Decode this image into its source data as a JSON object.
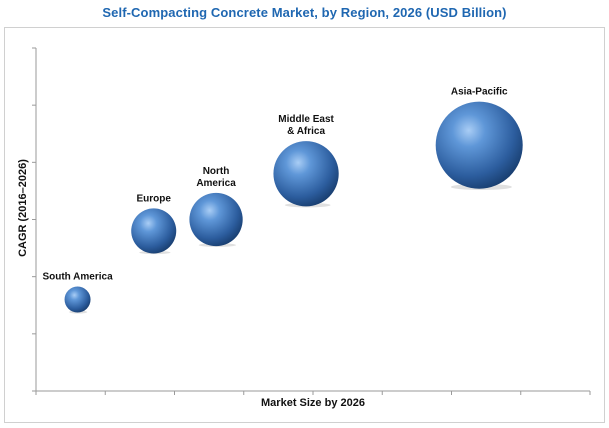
{
  "chart_data": {
    "type": "scatter",
    "variant": "bubble",
    "title": "Self-Compacting Concrete Market, by Region, 2026 (USD Billion)",
    "xlabel": "Market Size by 2026",
    "ylabel": "CAGR (2016–2026)",
    "grid": false,
    "legend": "none",
    "xlim": [
      0,
      8
    ],
    "ylim": [
      0,
      6
    ],
    "bubble_color": "#3f74b5",
    "points": [
      {
        "label": "South America",
        "label_lines": [
          "South America"
        ],
        "x": 0.6,
        "y": 1.6,
        "size": 1
      },
      {
        "label": "Europe",
        "label_lines": [
          "Europe"
        ],
        "x": 1.7,
        "y": 2.8,
        "size": 3
      },
      {
        "label": "North America",
        "label_lines": [
          "North",
          "America"
        ],
        "x": 2.6,
        "y": 3.0,
        "size": 4.2
      },
      {
        "label": "Middle East & Africa",
        "label_lines": [
          "Middle East",
          "& Africa"
        ],
        "x": 3.9,
        "y": 3.8,
        "size": 6.3
      },
      {
        "label": "Asia-Pacific",
        "label_lines": [
          "Asia-Pacific"
        ],
        "x": 6.4,
        "y": 4.3,
        "size": 11.2
      }
    ]
  }
}
